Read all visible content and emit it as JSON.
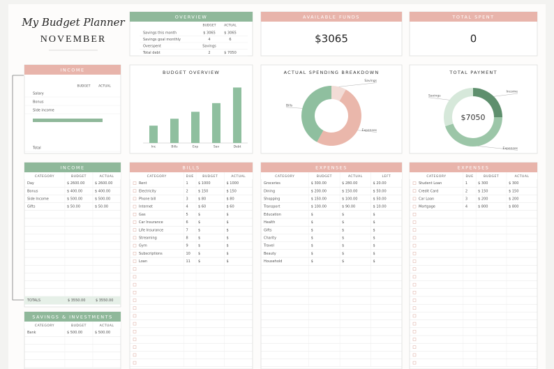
{
  "header": {
    "title": "My Budget Planner",
    "month": "NOVEMBER"
  },
  "overview": {
    "title": "OVERVIEW",
    "columns": [
      "BUDGET",
      "ACTUAL"
    ],
    "rows": [
      [
        "Savings this month",
        "$ 3065",
        "$ 3065"
      ],
      [
        "Savings goal monthly",
        "4",
        "6"
      ],
      [
        "Overspent",
        "Savings"
      ],
      [
        "Total debt",
        "2",
        "$ 7050"
      ]
    ]
  },
  "available_funds": {
    "title": "AVAILABLE FUNDS",
    "value": "$3065"
  },
  "total_spent": {
    "title": "TOTAL SPENT",
    "value": "0"
  },
  "income_summary": {
    "title": "INCOME",
    "columns": [
      "BUDGET",
      "ACTUAL"
    ],
    "rows": [
      "Salary",
      "Bonus",
      "Side income",
      "Total"
    ]
  },
  "budget_overview": {
    "type": "bar",
    "title": "BUDGET OVERVIEW",
    "categories": [
      "Inc",
      "Bills",
      "Exp",
      "Sav",
      "Debt"
    ],
    "values": [
      1000,
      1400,
      1800,
      2300,
      3200
    ],
    "ylim": [
      0,
      3500
    ],
    "color": "#8fbf9f"
  },
  "spending_breakdown": {
    "type": "pie",
    "title": "ACTUAL SPENDING BREAKDOWN",
    "series": [
      {
        "name": "Savings",
        "value": 8,
        "color": "#f2dcd6"
      },
      {
        "name": "Expenses",
        "value": 50,
        "color": "#eab7ab"
      },
      {
        "name": "Bills",
        "value": 42,
        "color": "#8fbf9f"
      }
    ]
  },
  "total_payment": {
    "type": "pie",
    "title": "TOTAL PAYMENT",
    "center_label": "$7050",
    "series": [
      {
        "name": "Income",
        "value": 25,
        "color": "#5e8f6d"
      },
      {
        "name": "Expenses",
        "value": 45,
        "color": "#9cc6a8"
      },
      {
        "name": "Savings",
        "value": 30,
        "color": "#d6e8da"
      }
    ]
  },
  "income_table": {
    "title": "INCOME",
    "columns": [
      "CATEGORY",
      "BUDGET",
      "ACTUAL"
    ],
    "rows": [
      [
        "Day",
        "$ 2600.00",
        "$ 2600.00"
      ],
      [
        "Bonus",
        "$ 400.00",
        "$ 400.00"
      ],
      [
        "Side Income",
        "$ 500.00",
        "$ 500.00"
      ],
      [
        "Gifts",
        "$ 50.00",
        "$ 50.00"
      ]
    ],
    "totals": [
      "TOTALS",
      "$ 3550.00",
      "$ 3550.00"
    ]
  },
  "savings_table": {
    "title": "SAVINGS & INVESTMENTS",
    "columns": [
      "CATEGORY",
      "BUDGET",
      "ACTUAL"
    ],
    "rows": [
      [
        "Bank",
        "$ 500.00",
        "$ 500.00"
      ]
    ]
  },
  "bills_table": {
    "title": "BILLS",
    "columns": [
      "CATEGORY",
      "DUE",
      "BUDGET",
      "ACTUAL"
    ],
    "rows": [
      [
        "Rent",
        "1",
        "$ 1000",
        "$ 1000"
      ],
      [
        "Electricity",
        "2",
        "$ 150",
        "$ 150"
      ],
      [
        "Phone bill",
        "3",
        "$ 80",
        "$ 80"
      ],
      [
        "Internet",
        "4",
        "$ 60",
        "$ 60"
      ],
      [
        "Gas",
        "5",
        "$",
        "$"
      ],
      [
        "Car Insurance",
        "6",
        "$",
        "$"
      ],
      [
        "Life Insurance",
        "7",
        "$",
        "$"
      ],
      [
        "Streaming",
        "8",
        "$",
        "$"
      ],
      [
        "Gym",
        "9",
        "$",
        "$"
      ],
      [
        "Subscriptions",
        "10",
        "$",
        "$"
      ],
      [
        "Loan",
        "11",
        "$",
        "$"
      ]
    ]
  },
  "expenses_table": {
    "title": "EXPENSES",
    "columns": [
      "CATEGORY",
      "BUDGET",
      "ACTUAL",
      "LEFT"
    ],
    "rows": [
      [
        "Groceries",
        "$ 300.00",
        "$ 280.00",
        "$ 20.00"
      ],
      [
        "Dining",
        "$ 200.00",
        "$ 150.00",
        "$ 50.00"
      ],
      [
        "Shopping",
        "$ 150.00",
        "$ 100.00",
        "$ 50.00"
      ],
      [
        "Transport",
        "$ 100.00",
        "$ 90.00",
        "$ 10.00"
      ],
      [
        "Education",
        "$",
        "$",
        "$"
      ],
      [
        "Health",
        "$",
        "$",
        "$"
      ],
      [
        "Gifts",
        "$",
        "$",
        "$"
      ],
      [
        "Charity",
        "$",
        "$",
        "$"
      ],
      [
        "Travel",
        "$",
        "$",
        "$"
      ],
      [
        "Beauty",
        "$",
        "$",
        "$"
      ],
      [
        "Household",
        "$",
        "$",
        "$"
      ]
    ]
  },
  "debt_table": {
    "title": "EXPENSES",
    "columns": [
      "CATEGORY",
      "DUE",
      "BUDGET",
      "ACTUAL"
    ],
    "rows": [
      [
        "Student Loan",
        "1",
        "$ 300",
        "$ 300"
      ],
      [
        "Credit Card",
        "2",
        "$ 150",
        "$ 150"
      ],
      [
        "Car Loan",
        "3",
        "$ 200",
        "$ 200"
      ],
      [
        "Mortgage",
        "4",
        "$ 800",
        "$ 800"
      ]
    ]
  }
}
